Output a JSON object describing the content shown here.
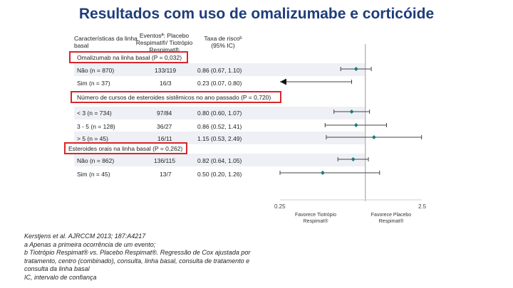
{
  "title": "Resultados com uso de omalizumabe e corticóide",
  "headers": {
    "characteristics": "Características da linha basal",
    "events": "Eventosª: Placebo Respimat®/ Tiotrópio Respimat®",
    "rate": "Taxa de riscoᵇ (95% IC)"
  },
  "chart_data": {
    "type": "forest",
    "x_scale": "log",
    "xlim": [
      0.25,
      2.5
    ],
    "reference_line": 1.0,
    "tick_labels": [
      "0.25",
      "2.5"
    ],
    "left_label": "Favorece Tiotrópio Respimat®",
    "right_label": "Favorece Placebo Respimat®",
    "sections": [
      {
        "label": "Omalizumab na linha basal (P = 0,032)",
        "rows": [
          {
            "label": "Não (n = 870)",
            "events": "133/119",
            "ci_text": "0.86 (0.67, 1.10)",
            "hr": 0.86,
            "lo": 0.67,
            "hi": 1.1,
            "arrow_left": false
          },
          {
            "label": "Sim (n = 37)",
            "events": "16/3",
            "ci_text": "0.23 (0.07, 0.80)",
            "hr": 0.23,
            "lo": 0.07,
            "hi": 0.8,
            "arrow_left": true
          }
        ]
      },
      {
        "label": "Número de cursos de esteroides sistêmicos no ano passado (P = 0,720)",
        "rows": [
          {
            "label": "< 3 (n = 734)",
            "events": "97/84",
            "ci_text": "0.80 (0.60, 1.07)",
            "hr": 0.8,
            "lo": 0.6,
            "hi": 1.07,
            "arrow_left": false
          },
          {
            "label": "3 - 5 (n = 128)",
            "events": "36/27",
            "ci_text": "0.86 (0.52, 1.41)",
            "hr": 0.86,
            "lo": 0.52,
            "hi": 1.41,
            "arrow_left": false
          },
          {
            "label": "> 5 (n = 45)",
            "events": "16/11",
            "ci_text": "1.15 (0.53, 2.49)",
            "hr": 1.15,
            "lo": 0.53,
            "hi": 2.49,
            "arrow_left": false
          }
        ]
      },
      {
        "label": "Esteroides orais na linha basal (P = 0,262)",
        "rows": [
          {
            "label": "Não (n = 862)",
            "events": "136/115",
            "ci_text": "0.82 (0.64, 1.05)",
            "hr": 0.82,
            "lo": 0.64,
            "hi": 1.05,
            "arrow_left": false
          },
          {
            "label": "Sim (n = 45)",
            "events": "13/7",
            "ci_text": "0.50 (0.20, 1.26)",
            "hr": 0.5,
            "lo": 0.2,
            "hi": 1.26,
            "arrow_left": false
          }
        ]
      }
    ]
  },
  "colors": {
    "title": "#1f3d7a",
    "marker": "#1f7a7a",
    "highlight_box": "#d9262a"
  },
  "footnotes": [
    "Kerstjens et al. AJRCCM 2013; 187:A4217",
    "a Apenas a primeira ocorrência de um evento;",
    "b Tiotrópio Respimat® vs. Placebo Respimat®. Regressão de Cox ajustada por",
    "tratamento, centro (combinado), consulta, linha basal, consulta de tratamento e",
    "consulta da linha basal",
    "IC, intervalo de confiança"
  ]
}
